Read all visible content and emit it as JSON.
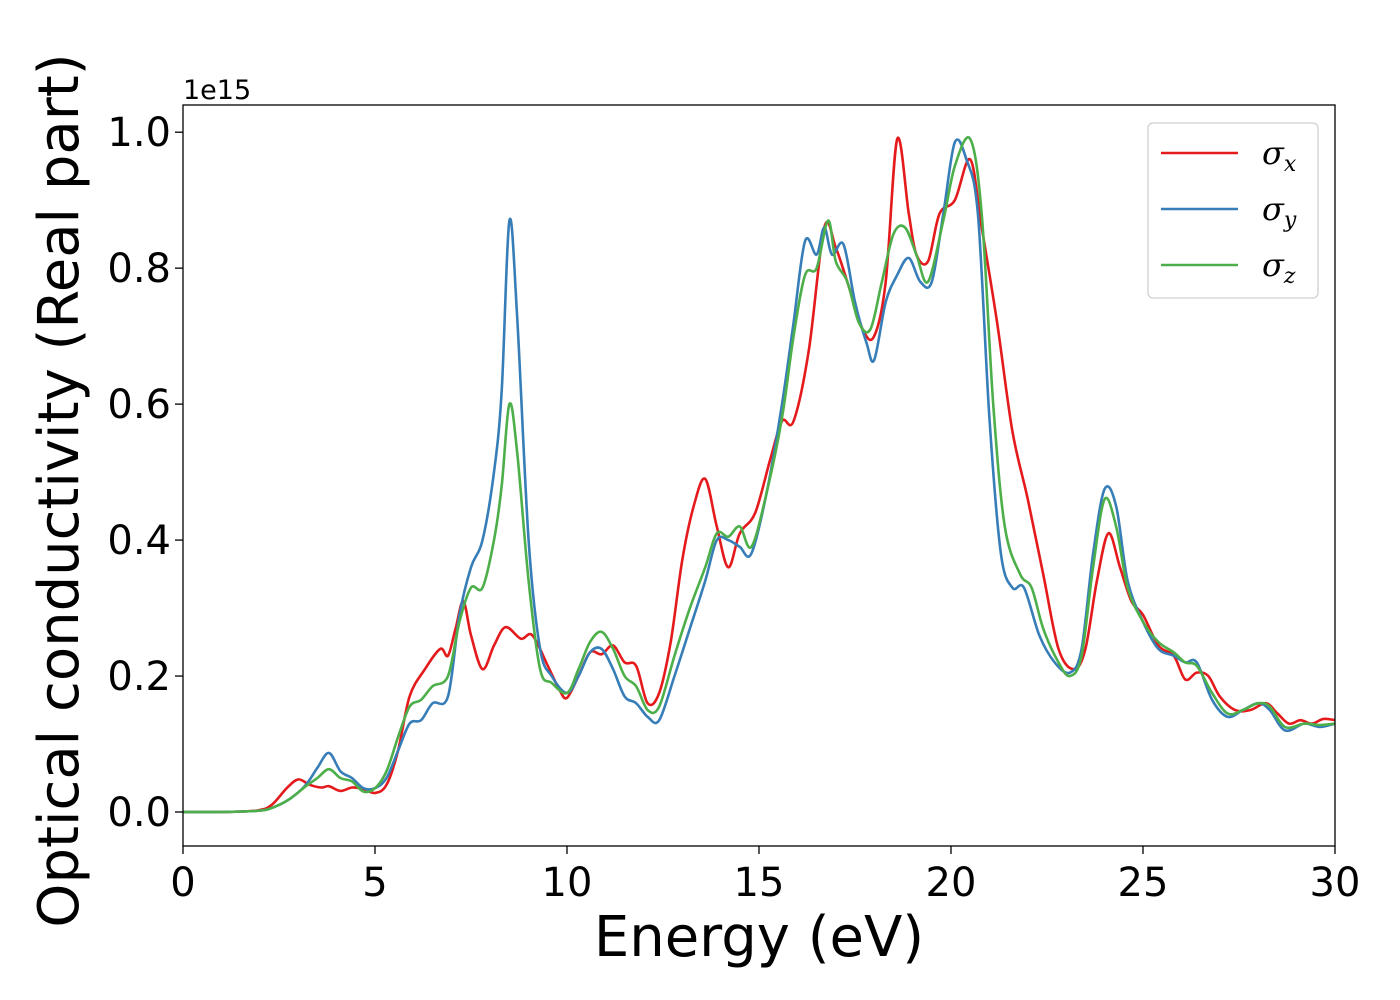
{
  "chart_data": {
    "type": "line",
    "title": "",
    "xlabel": "Energy (eV)",
    "ylabel": "Optical conductivity (Real part)",
    "y_offset_label": "1e15",
    "xlim": [
      0,
      30
    ],
    "ylim": [
      -0.05,
      1.04
    ],
    "xticks": [
      0,
      5,
      10,
      15,
      20,
      25,
      30
    ],
    "yticks": [
      0.0,
      0.2,
      0.4,
      0.6,
      0.8,
      1.0
    ],
    "xtick_labels": [
      "0",
      "5",
      "10",
      "15",
      "20",
      "25",
      "30"
    ],
    "ytick_labels": [
      "0.0",
      "0.2",
      "0.4",
      "0.6",
      "0.8",
      "1.0"
    ],
    "grid": false,
    "legend_position": "top-right",
    "series": [
      {
        "name": "σx",
        "symbol": "σ",
        "sub": "x",
        "color": "#e41a1c",
        "points": [
          [
            0,
            0
          ],
          [
            1,
            0
          ],
          [
            1.9,
            0.002
          ],
          [
            2.3,
            0.01
          ],
          [
            2.7,
            0.035
          ],
          [
            3.0,
            0.048
          ],
          [
            3.3,
            0.04
          ],
          [
            3.6,
            0.036
          ],
          [
            3.8,
            0.038
          ],
          [
            4.1,
            0.031
          ],
          [
            4.4,
            0.036
          ],
          [
            4.7,
            0.034
          ],
          [
            5.0,
            0.028
          ],
          [
            5.3,
            0.04
          ],
          [
            5.6,
            0.09
          ],
          [
            5.9,
            0.17
          ],
          [
            6.3,
            0.21
          ],
          [
            6.7,
            0.24
          ],
          [
            6.9,
            0.23
          ],
          [
            7.1,
            0.27
          ],
          [
            7.3,
            0.31
          ],
          [
            7.5,
            0.26
          ],
          [
            7.8,
            0.21
          ],
          [
            8.1,
            0.245
          ],
          [
            8.4,
            0.272
          ],
          [
            8.8,
            0.255
          ],
          [
            9.1,
            0.26
          ],
          [
            9.5,
            0.215
          ],
          [
            9.8,
            0.18
          ],
          [
            10.0,
            0.168
          ],
          [
            10.3,
            0.2
          ],
          [
            10.6,
            0.235
          ],
          [
            10.9,
            0.232
          ],
          [
            11.2,
            0.245
          ],
          [
            11.5,
            0.22
          ],
          [
            11.8,
            0.215
          ],
          [
            12.1,
            0.16
          ],
          [
            12.4,
            0.175
          ],
          [
            12.7,
            0.25
          ],
          [
            13.0,
            0.37
          ],
          [
            13.3,
            0.45
          ],
          [
            13.6,
            0.49
          ],
          [
            13.9,
            0.42
          ],
          [
            14.2,
            0.36
          ],
          [
            14.5,
            0.41
          ],
          [
            14.9,
            0.44
          ],
          [
            15.3,
            0.52
          ],
          [
            15.6,
            0.575
          ],
          [
            15.9,
            0.575
          ],
          [
            16.3,
            0.68
          ],
          [
            16.7,
            0.86
          ],
          [
            17.0,
            0.83
          ],
          [
            17.3,
            0.78
          ],
          [
            17.7,
            0.71
          ],
          [
            18.0,
            0.7
          ],
          [
            18.3,
            0.78
          ],
          [
            18.6,
            0.99
          ],
          [
            18.9,
            0.88
          ],
          [
            19.1,
            0.82
          ],
          [
            19.4,
            0.81
          ],
          [
            19.7,
            0.88
          ],
          [
            20.1,
            0.9
          ],
          [
            20.5,
            0.96
          ],
          [
            20.8,
            0.86
          ],
          [
            21.2,
            0.72
          ],
          [
            21.6,
            0.56
          ],
          [
            22.0,
            0.46
          ],
          [
            22.4,
            0.35
          ],
          [
            22.8,
            0.24
          ],
          [
            23.2,
            0.21
          ],
          [
            23.5,
            0.24
          ],
          [
            23.8,
            0.34
          ],
          [
            24.1,
            0.41
          ],
          [
            24.4,
            0.36
          ],
          [
            24.7,
            0.31
          ],
          [
            25.0,
            0.29
          ],
          [
            25.4,
            0.245
          ],
          [
            25.8,
            0.23
          ],
          [
            26.1,
            0.195
          ],
          [
            26.4,
            0.205
          ],
          [
            26.7,
            0.2
          ],
          [
            27.0,
            0.17
          ],
          [
            27.4,
            0.15
          ],
          [
            27.8,
            0.15
          ],
          [
            28.2,
            0.16
          ],
          [
            28.5,
            0.145
          ],
          [
            28.8,
            0.13
          ],
          [
            29.1,
            0.135
          ],
          [
            29.4,
            0.13
          ],
          [
            29.7,
            0.137
          ],
          [
            30,
            0.135
          ]
        ]
      },
      {
        "name": "σy",
        "symbol": "σ",
        "sub": "y",
        "color": "#377eb8",
        "points": [
          [
            0,
            0
          ],
          [
            1,
            0
          ],
          [
            2.0,
            0.002
          ],
          [
            2.4,
            0.008
          ],
          [
            2.8,
            0.02
          ],
          [
            3.2,
            0.04
          ],
          [
            3.5,
            0.065
          ],
          [
            3.8,
            0.087
          ],
          [
            4.1,
            0.06
          ],
          [
            4.4,
            0.05
          ],
          [
            4.7,
            0.035
          ],
          [
            5.0,
            0.035
          ],
          [
            5.3,
            0.05
          ],
          [
            5.6,
            0.09
          ],
          [
            5.9,
            0.13
          ],
          [
            6.2,
            0.135
          ],
          [
            6.5,
            0.16
          ],
          [
            6.9,
            0.17
          ],
          [
            7.2,
            0.29
          ],
          [
            7.5,
            0.36
          ],
          [
            7.8,
            0.4
          ],
          [
            8.1,
            0.5
          ],
          [
            8.3,
            0.62
          ],
          [
            8.5,
            0.87
          ],
          [
            8.7,
            0.73
          ],
          [
            9.0,
            0.4
          ],
          [
            9.3,
            0.24
          ],
          [
            9.6,
            0.2
          ],
          [
            10.0,
            0.175
          ],
          [
            10.3,
            0.2
          ],
          [
            10.6,
            0.235
          ],
          [
            10.9,
            0.24
          ],
          [
            11.2,
            0.21
          ],
          [
            11.5,
            0.17
          ],
          [
            11.8,
            0.16
          ],
          [
            12.1,
            0.14
          ],
          [
            12.4,
            0.135
          ],
          [
            12.8,
            0.2
          ],
          [
            13.2,
            0.27
          ],
          [
            13.6,
            0.34
          ],
          [
            13.9,
            0.4
          ],
          [
            14.2,
            0.4
          ],
          [
            14.5,
            0.39
          ],
          [
            14.8,
            0.38
          ],
          [
            15.2,
            0.47
          ],
          [
            15.6,
            0.6
          ],
          [
            15.9,
            0.72
          ],
          [
            16.2,
            0.84
          ],
          [
            16.5,
            0.82
          ],
          [
            16.7,
            0.86
          ],
          [
            16.9,
            0.82
          ],
          [
            17.2,
            0.835
          ],
          [
            17.5,
            0.75
          ],
          [
            17.8,
            0.69
          ],
          [
            18.0,
            0.665
          ],
          [
            18.3,
            0.75
          ],
          [
            18.6,
            0.79
          ],
          [
            18.9,
            0.815
          ],
          [
            19.2,
            0.78
          ],
          [
            19.5,
            0.78
          ],
          [
            19.8,
            0.88
          ],
          [
            20.1,
            0.985
          ],
          [
            20.4,
            0.96
          ],
          [
            20.7,
            0.88
          ],
          [
            21.0,
            0.58
          ],
          [
            21.3,
            0.38
          ],
          [
            21.6,
            0.33
          ],
          [
            21.9,
            0.33
          ],
          [
            22.3,
            0.26
          ],
          [
            22.7,
            0.22
          ],
          [
            23.1,
            0.205
          ],
          [
            23.4,
            0.24
          ],
          [
            23.7,
            0.38
          ],
          [
            24.0,
            0.475
          ],
          [
            24.3,
            0.45
          ],
          [
            24.6,
            0.34
          ],
          [
            25.0,
            0.28
          ],
          [
            25.4,
            0.24
          ],
          [
            25.8,
            0.23
          ],
          [
            26.1,
            0.22
          ],
          [
            26.4,
            0.22
          ],
          [
            26.8,
            0.165
          ],
          [
            27.2,
            0.14
          ],
          [
            27.6,
            0.15
          ],
          [
            28.0,
            0.16
          ],
          [
            28.3,
            0.15
          ],
          [
            28.7,
            0.12
          ],
          [
            29.2,
            0.13
          ],
          [
            29.6,
            0.125
          ],
          [
            30,
            0.13
          ]
        ]
      },
      {
        "name": "σz",
        "symbol": "σ",
        "sub": "z",
        "color": "#4daf4a",
        "points": [
          [
            0,
            0
          ],
          [
            1,
            0
          ],
          [
            2.0,
            0.002
          ],
          [
            2.4,
            0.008
          ],
          [
            2.8,
            0.02
          ],
          [
            3.2,
            0.038
          ],
          [
            3.5,
            0.05
          ],
          [
            3.8,
            0.063
          ],
          [
            4.1,
            0.05
          ],
          [
            4.4,
            0.045
          ],
          [
            4.7,
            0.03
          ],
          [
            5.0,
            0.035
          ],
          [
            5.3,
            0.06
          ],
          [
            5.6,
            0.11
          ],
          [
            5.9,
            0.155
          ],
          [
            6.2,
            0.165
          ],
          [
            6.5,
            0.185
          ],
          [
            6.9,
            0.2
          ],
          [
            7.2,
            0.28
          ],
          [
            7.5,
            0.33
          ],
          [
            7.8,
            0.33
          ],
          [
            8.1,
            0.4
          ],
          [
            8.3,
            0.48
          ],
          [
            8.5,
            0.6
          ],
          [
            8.7,
            0.53
          ],
          [
            9.0,
            0.34
          ],
          [
            9.3,
            0.21
          ],
          [
            9.6,
            0.19
          ],
          [
            10.0,
            0.175
          ],
          [
            10.3,
            0.21
          ],
          [
            10.6,
            0.25
          ],
          [
            10.9,
            0.265
          ],
          [
            11.2,
            0.24
          ],
          [
            11.5,
            0.2
          ],
          [
            11.8,
            0.185
          ],
          [
            12.1,
            0.15
          ],
          [
            12.4,
            0.155
          ],
          [
            12.8,
            0.23
          ],
          [
            13.2,
            0.3
          ],
          [
            13.6,
            0.36
          ],
          [
            13.9,
            0.41
          ],
          [
            14.2,
            0.405
          ],
          [
            14.5,
            0.42
          ],
          [
            14.8,
            0.39
          ],
          [
            15.2,
            0.47
          ],
          [
            15.6,
            0.58
          ],
          [
            15.9,
            0.7
          ],
          [
            16.2,
            0.79
          ],
          [
            16.5,
            0.8
          ],
          [
            16.8,
            0.87
          ],
          [
            17.0,
            0.81
          ],
          [
            17.3,
            0.78
          ],
          [
            17.6,
            0.72
          ],
          [
            17.9,
            0.71
          ],
          [
            18.2,
            0.78
          ],
          [
            18.5,
            0.85
          ],
          [
            18.8,
            0.86
          ],
          [
            19.1,
            0.82
          ],
          [
            19.4,
            0.78
          ],
          [
            19.8,
            0.87
          ],
          [
            20.1,
            0.95
          ],
          [
            20.5,
            0.99
          ],
          [
            20.8,
            0.88
          ],
          [
            21.1,
            0.6
          ],
          [
            21.4,
            0.42
          ],
          [
            21.8,
            0.35
          ],
          [
            22.1,
            0.33
          ],
          [
            22.4,
            0.27
          ],
          [
            22.8,
            0.22
          ],
          [
            23.1,
            0.2
          ],
          [
            23.4,
            0.23
          ],
          [
            23.7,
            0.36
          ],
          [
            24.0,
            0.46
          ],
          [
            24.3,
            0.42
          ],
          [
            24.6,
            0.33
          ],
          [
            25.0,
            0.28
          ],
          [
            25.4,
            0.25
          ],
          [
            25.8,
            0.235
          ],
          [
            26.1,
            0.22
          ],
          [
            26.4,
            0.215
          ],
          [
            26.8,
            0.175
          ],
          [
            27.2,
            0.145
          ],
          [
            27.6,
            0.15
          ],
          [
            28.0,
            0.16
          ],
          [
            28.3,
            0.155
          ],
          [
            28.7,
            0.125
          ],
          [
            29.2,
            0.13
          ],
          [
            29.6,
            0.128
          ],
          [
            30,
            0.13
          ]
        ]
      }
    ]
  }
}
